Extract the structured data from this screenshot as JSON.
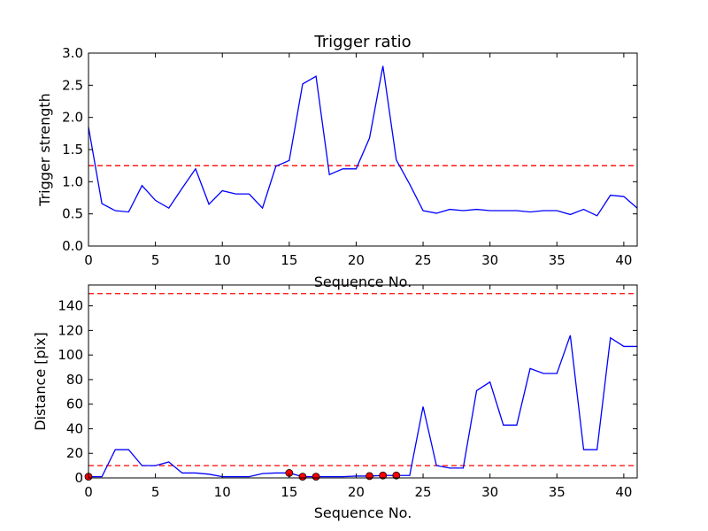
{
  "chart_data": [
    {
      "type": "line",
      "title": "Trigger ratio",
      "xlabel": "Sequence No.",
      "ylabel": "Trigger strength",
      "xlim": [
        0,
        41
      ],
      "ylim": [
        0,
        3.0
      ],
      "xticks": [
        0,
        5,
        10,
        15,
        20,
        25,
        30,
        35,
        40
      ],
      "yticks": [
        0.0,
        0.5,
        1.0,
        1.5,
        2.0,
        2.5,
        3.0
      ],
      "ytick_labels": [
        "0.0",
        "0.5",
        "1.0",
        "1.5",
        "2.0",
        "2.5",
        "3.0"
      ],
      "grid": false,
      "series": [
        {
          "color": "#0000ff",
          "x": [
            0,
            1,
            2,
            3,
            4,
            5,
            6,
            7,
            8,
            9,
            10,
            11,
            12,
            13,
            14,
            15,
            16,
            17,
            18,
            19,
            20,
            21,
            22,
            23,
            24,
            25,
            26,
            27,
            28,
            29,
            30,
            31,
            32,
            33,
            34,
            35,
            36,
            37,
            38,
            39,
            40,
            41
          ],
          "values": [
            1.85,
            0.66,
            0.55,
            0.53,
            0.94,
            0.71,
            0.59,
            0.9,
            1.2,
            0.65,
            0.86,
            0.81,
            0.81,
            0.59,
            1.24,
            1.33,
            2.52,
            2.64,
            1.11,
            1.2,
            1.2,
            1.68,
            2.8,
            1.34,
            0.96,
            0.55,
            0.51,
            0.57,
            0.55,
            0.57,
            0.55,
            0.55,
            0.55,
            0.53,
            0.55,
            0.55,
            0.49,
            0.57,
            0.47,
            0.79,
            0.77,
            0.59
          ]
        }
      ],
      "reference_lines": [
        {
          "y": 1.25,
          "color": "#ff0000",
          "style": "dashed"
        }
      ]
    },
    {
      "type": "line",
      "title": "",
      "xlabel": "Sequence No.",
      "ylabel": "Distance [pix]",
      "xlim": [
        0,
        41
      ],
      "ylim": [
        0,
        157
      ],
      "xticks": [
        0,
        5,
        10,
        15,
        20,
        25,
        30,
        35,
        40
      ],
      "yticks": [
        0,
        20,
        40,
        60,
        80,
        100,
        120,
        140
      ],
      "ytick_labels": [
        "0",
        "20",
        "40",
        "60",
        "80",
        "100",
        "120",
        "140"
      ],
      "grid": false,
      "series": [
        {
          "color": "#0000ff",
          "x": [
            0,
            1,
            2,
            3,
            4,
            5,
            6,
            7,
            8,
            9,
            10,
            11,
            12,
            13,
            14,
            15,
            16,
            17,
            18,
            19,
            20,
            21,
            22,
            23,
            24,
            25,
            26,
            27,
            28,
            29,
            30,
            31,
            32,
            33,
            34,
            35,
            36,
            37,
            38,
            39,
            40,
            41
          ],
          "values": [
            1,
            1,
            23,
            23,
            10,
            10,
            13,
            4,
            4,
            3,
            1,
            1,
            1,
            3.5,
            4,
            4,
            1,
            1,
            1,
            1,
            1.5,
            1.5,
            2,
            2,
            2,
            58,
            10,
            8,
            8,
            71,
            78,
            43,
            43,
            89,
            85,
            85,
            116,
            23,
            23,
            114,
            107,
            107
          ]
        }
      ],
      "highlight_points": {
        "color": "#ff0000",
        "x": [
          0,
          15,
          16,
          17,
          21,
          22,
          23
        ],
        "values": [
          1,
          4,
          1,
          1,
          1.5,
          2,
          2
        ]
      },
      "reference_lines": [
        {
          "y": 10,
          "color": "#ff0000",
          "style": "dashed"
        },
        {
          "y": 150,
          "color": "#ff0000",
          "style": "dashed"
        }
      ]
    }
  ]
}
